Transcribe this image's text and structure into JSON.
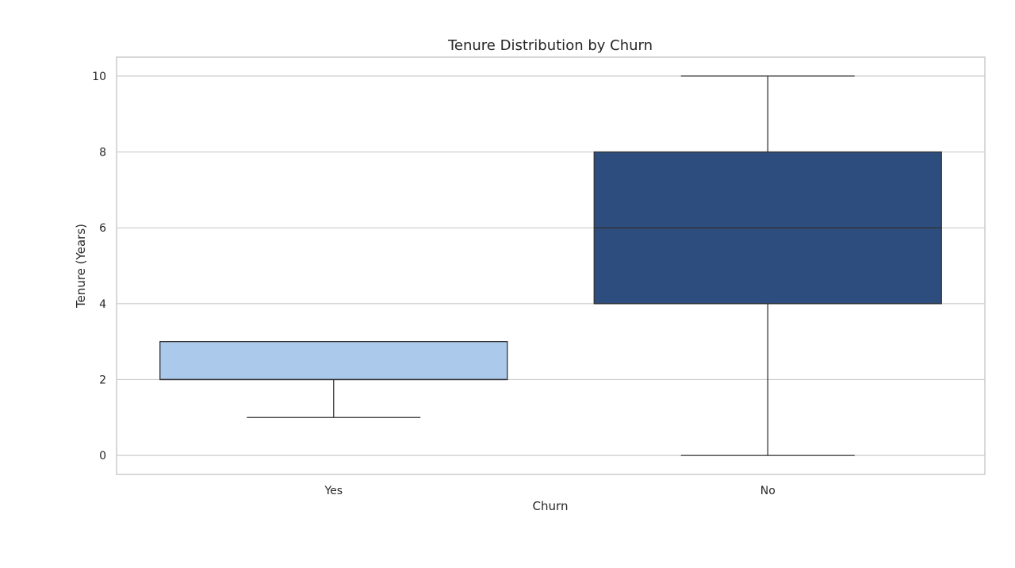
{
  "chart_data": {
    "type": "box",
    "title": "Tenure Distribution by Churn",
    "xlabel": "Churn",
    "ylabel": "Tenure (Years)",
    "categories": [
      "Yes",
      "No"
    ],
    "boxes": [
      {
        "category": "Yes",
        "whisker_low": 1,
        "q1": 2,
        "median": 2,
        "q3": 3,
        "whisker_high": 3,
        "color": "#abc9ea"
      },
      {
        "category": "No",
        "whisker_low": 0,
        "q1": 4,
        "median": 6,
        "q3": 8,
        "whisker_high": 10,
        "color": "#2d4d7e"
      }
    ],
    "ylim": [
      -0.5,
      10.5
    ],
    "yticks": [
      0,
      2,
      4,
      6,
      8,
      10
    ],
    "grid": true,
    "colors": {
      "grid": "#cccccc",
      "frame": "#cccccc",
      "box_edge": "#333333",
      "background": "#ffffff"
    }
  }
}
